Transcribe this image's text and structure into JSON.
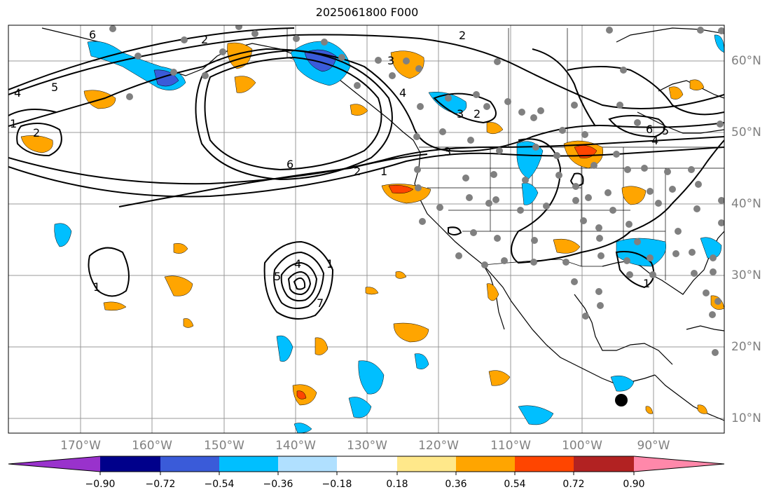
{
  "title": "2025061800 F000",
  "lat_labels": [
    "60°N",
    "50°N",
    "40°N",
    "30°N",
    "20°N",
    "10°N"
  ],
  "lon_labels": [
    "170°W",
    "160°W",
    "150°W",
    "140°W",
    "130°W",
    "120°W",
    "110°W",
    "100°W",
    "90°W"
  ],
  "contour_labels": [
    "6",
    "2",
    "5",
    "4",
    "1",
    "2",
    "3",
    "3",
    "2",
    "4",
    "6",
    "2",
    "1",
    "3",
    "4",
    "5",
    "6",
    "2",
    "5",
    "4",
    "1",
    "1",
    "7",
    "1"
  ],
  "colorbar": {
    "ticks": [
      "−0.90",
      "−0.72",
      "−0.54",
      "−0.36",
      "−0.18",
      "0.18",
      "0.36",
      "0.54",
      "0.72",
      "0.90"
    ],
    "colors": [
      "#9932cc",
      "#00008b",
      "#3a5bd9",
      "#00bfff",
      "#b0e0ff",
      "#ffffff",
      "#ffe88a",
      "#ffa500",
      "#ff4500",
      "#b22222",
      "#ff88aa"
    ]
  },
  "map_colors": {
    "neg_strong": "#3a5bd9",
    "neg": "#00bfff",
    "pos": "#ffa500",
    "pos_strong": "#ff4500",
    "station_dot": "#808080",
    "tc_marker": "#000000"
  }
}
